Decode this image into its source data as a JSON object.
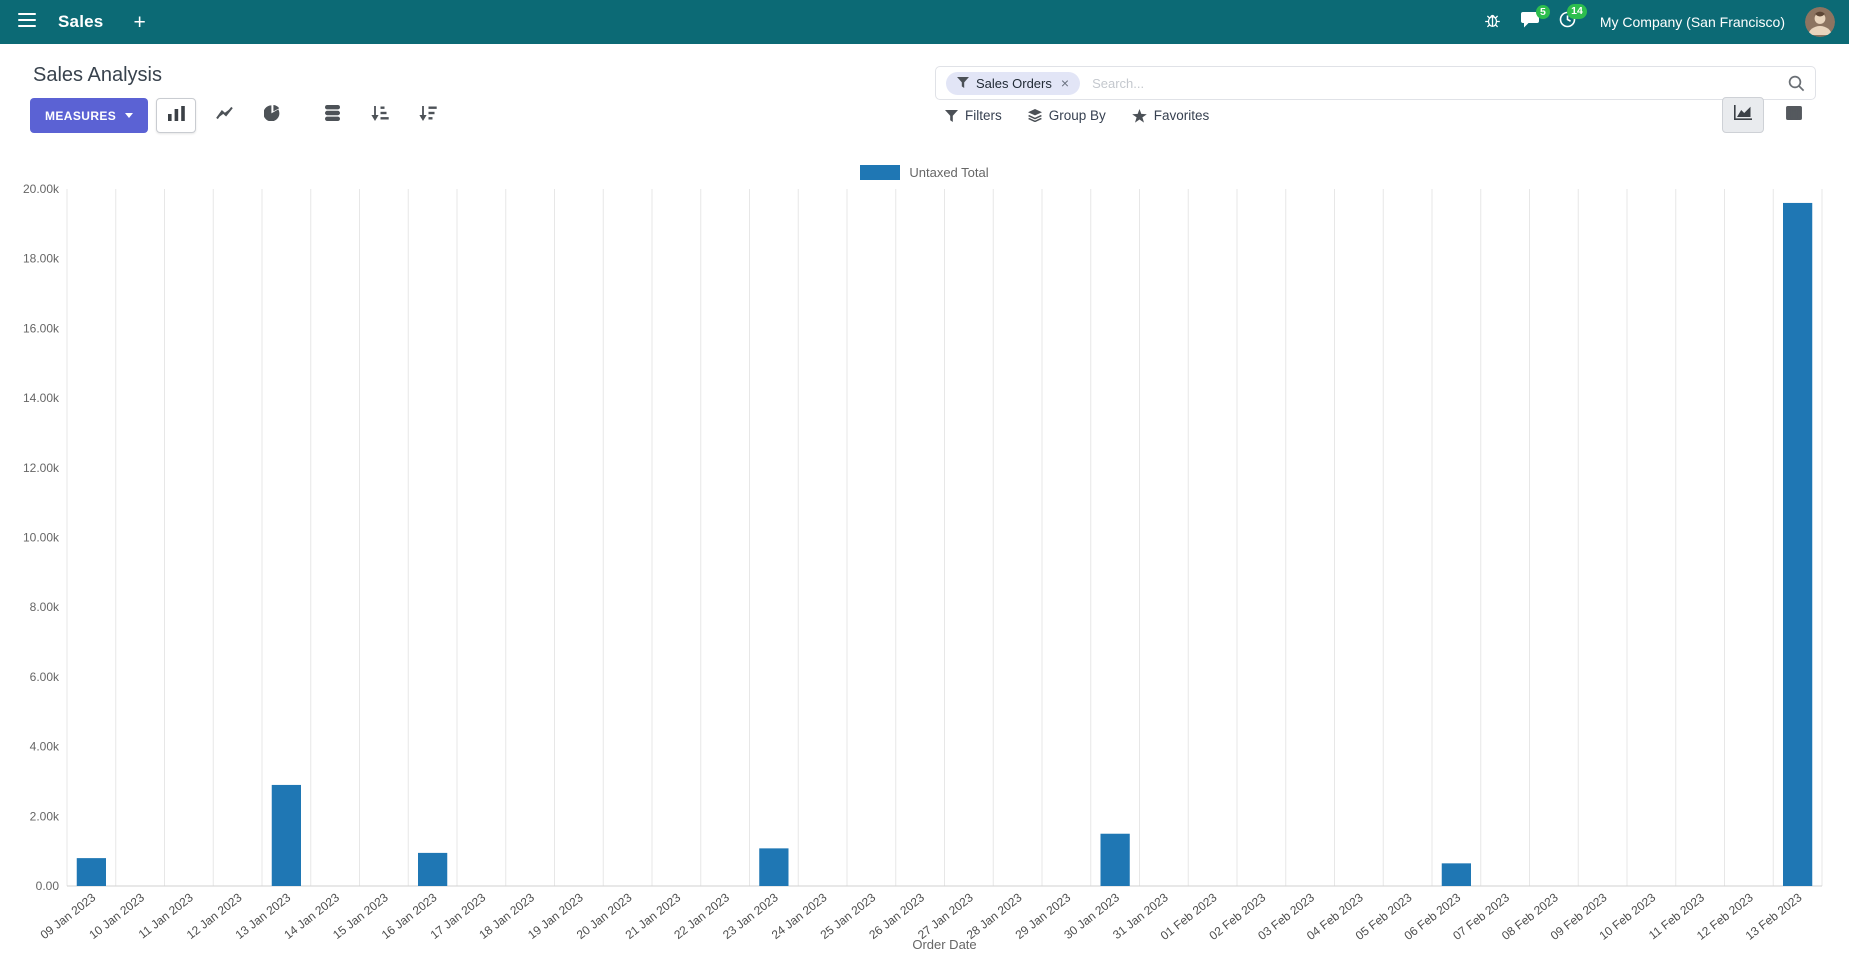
{
  "colors": {
    "navbar_bg": "#0c6a75",
    "accent": "#5b62d4",
    "badge": "#2dbe4e",
    "facet_bg": "#e2e5f6"
  },
  "navbar": {
    "app_name": "Sales",
    "new_button": "+",
    "messages_badge": "5",
    "activities_badge": "14",
    "company": "My Company (San Francisco)"
  },
  "control_panel": {
    "breadcrumb": "Sales Analysis",
    "measures_button": "MEASURES",
    "filters": "Filters",
    "group_by": "Group By",
    "favorites": "Favorites",
    "search_facet": "Sales Orders",
    "facet_remove": "×",
    "search_placeholder": "Search..."
  },
  "chart_data": {
    "type": "bar",
    "title": "",
    "legend_position": "top",
    "xlabel": "Order Date",
    "ylabel": "",
    "categories": [
      "09 Jan 2023",
      "10 Jan 2023",
      "11 Jan 2023",
      "12 Jan 2023",
      "13 Jan 2023",
      "14 Jan 2023",
      "15 Jan 2023",
      "16 Jan 2023",
      "17 Jan 2023",
      "18 Jan 2023",
      "19 Jan 2023",
      "20 Jan 2023",
      "21 Jan 2023",
      "22 Jan 2023",
      "23 Jan 2023",
      "24 Jan 2023",
      "25 Jan 2023",
      "26 Jan 2023",
      "27 Jan 2023",
      "28 Jan 2023",
      "29 Jan 2023",
      "30 Jan 2023",
      "31 Jan 2023",
      "01 Feb 2023",
      "02 Feb 2023",
      "03 Feb 2023",
      "04 Feb 2023",
      "05 Feb 2023",
      "06 Feb 2023",
      "07 Feb 2023",
      "08 Feb 2023",
      "09 Feb 2023",
      "10 Feb 2023",
      "11 Feb 2023",
      "12 Feb 2023",
      "13 Feb 2023"
    ],
    "series": [
      {
        "name": "Untaxed Total",
        "color": "#1f77b4",
        "values": [
          800,
          0,
          0,
          0,
          2900,
          0,
          0,
          950,
          0,
          0,
          0,
          0,
          0,
          0,
          1080,
          0,
          0,
          0,
          0,
          0,
          0,
          1500,
          0,
          0,
          0,
          0,
          0,
          0,
          650,
          0,
          0,
          0,
          0,
          0,
          0,
          19600
        ]
      }
    ],
    "ylim": [
      0,
      20000
    ],
    "ytick_step": 2000,
    "ytick_labels": [
      "0.00",
      "2.00k",
      "4.00k",
      "6.00k",
      "8.00k",
      "10.00k",
      "12.00k",
      "14.00k",
      "16.00k",
      "18.00k",
      "20.00k"
    ],
    "grid": "vertical"
  }
}
